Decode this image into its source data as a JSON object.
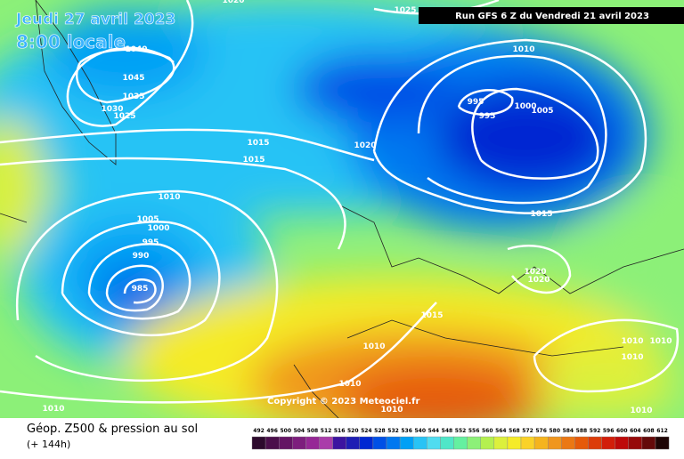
{
  "header": {
    "date": "Jeudi 27 avril 2023",
    "time": "8:00 locale",
    "run": "Run GFS 6 Z du Vendredi 21 avril 2023"
  },
  "copyright": "Copyright © 2023 Meteociel.fr",
  "legend": {
    "title": "Géop. Z500 & pression au sol",
    "lead": "(+ 144h)",
    "scale": [
      492,
      496,
      500,
      504,
      508,
      512,
      516,
      520,
      524,
      528,
      532,
      536,
      540,
      544,
      548,
      552,
      556,
      560,
      564,
      568,
      572,
      576,
      580,
      584,
      588,
      592,
      596,
      600,
      604,
      608,
      612
    ],
    "colors": [
      "#2d0a2d",
      "#4b0f4b",
      "#641464",
      "#7d1e7d",
      "#962896",
      "#aa3caa",
      "#3c14a0",
      "#1e1eb4",
      "#0028d2",
      "#0050e6",
      "#0078f0",
      "#00a0f5",
      "#28c3f5",
      "#50dcf0",
      "#50e6c8",
      "#64f0a0",
      "#8cf078",
      "#b4f050",
      "#dcf03c",
      "#f5eb28",
      "#fad228",
      "#f5b41e",
      "#f0961e",
      "#eb7814",
      "#e65a0a",
      "#dc3c0a",
      "#d21e0a",
      "#be0a0a",
      "#960a0a",
      "#640a0a",
      "#1e0505"
    ]
  },
  "isobar_labels": [
    1025,
    1020,
    1040,
    1045,
    1035,
    1030,
    1025,
    1010,
    995,
    995,
    1000,
    1005,
    1015,
    1015,
    1020,
    1010,
    1005,
    1000,
    995,
    990,
    985,
    1015,
    1020,
    1020,
    1015,
    1010,
    1010,
    1010,
    1010,
    1010,
    1010,
    1010,
    1010
  ]
}
